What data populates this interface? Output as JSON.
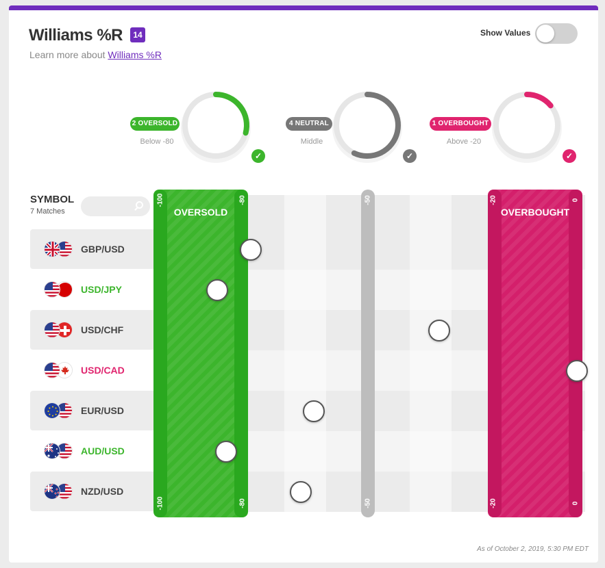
{
  "header": {
    "title": "Williams %R",
    "period": "14",
    "learn_prefix": "Learn more about ",
    "learn_link": "Williams %R",
    "show_values_label": "Show Values",
    "show_values_on": false
  },
  "summary": [
    {
      "pill": "2 OVERSOLD",
      "sub": "Below -80",
      "pct": 29,
      "pct_text": "29",
      "color": "#3cb52c"
    },
    {
      "pill": "4 NEUTRAL",
      "sub": "Middle",
      "pct": 57,
      "pct_text": "57",
      "color": "#777777"
    },
    {
      "pill": "1 OVERBOUGHT",
      "sub": "Above -20",
      "pct": 14,
      "pct_text": "14",
      "color": "#e0246e"
    }
  ],
  "pct_sign": "%",
  "check_glyph": "✓",
  "table": {
    "symbol_header": "SYMBOL",
    "matches": "7 Matches",
    "search_placeholder": ""
  },
  "scale": {
    "ticks": [
      "-100",
      "-80",
      "-50",
      "-20",
      "0"
    ],
    "oversold_label": "OVERSOLD",
    "overbought_label": "OVERBOUGHT"
  },
  "chart_data": {
    "type": "scatter",
    "xlim": [
      -100,
      0
    ],
    "title": "Williams %R",
    "x_ticks": [
      -100,
      -80,
      -50,
      -20,
      0
    ],
    "zones": [
      {
        "name": "OVERSOLD",
        "from": -100,
        "to": -80,
        "color": "#3cb52c"
      },
      {
        "name": "OVERBOUGHT",
        "from": -20,
        "to": 0,
        "color": "#d41f6b"
      }
    ],
    "points": [
      {
        "symbol": "GBP/USD",
        "value": -78,
        "status": "neutral",
        "flags": [
          "gb",
          "us"
        ]
      },
      {
        "symbol": "USD/JPY",
        "value": -86,
        "status": "oversold",
        "flags": [
          "us",
          "jp"
        ]
      },
      {
        "symbol": "USD/CHF",
        "value": -33,
        "status": "neutral",
        "flags": [
          "us",
          "ch"
        ]
      },
      {
        "symbol": "USD/CAD",
        "value": 0,
        "status": "overbought",
        "flags": [
          "us",
          "ca"
        ]
      },
      {
        "symbol": "EUR/USD",
        "value": -63,
        "status": "neutral",
        "flags": [
          "eu",
          "us"
        ]
      },
      {
        "symbol": "AUD/USD",
        "value": -84,
        "status": "oversold",
        "flags": [
          "au",
          "us"
        ]
      },
      {
        "symbol": "NZD/USD",
        "value": -66,
        "status": "neutral",
        "flags": [
          "nz",
          "us"
        ]
      }
    ]
  },
  "status_colors": {
    "neutral": "#444444",
    "oversold": "#3cb52c",
    "overbought": "#e0246e"
  },
  "footer": {
    "as_of": "As of October 2, 2019, 5:30 PM EDT"
  }
}
